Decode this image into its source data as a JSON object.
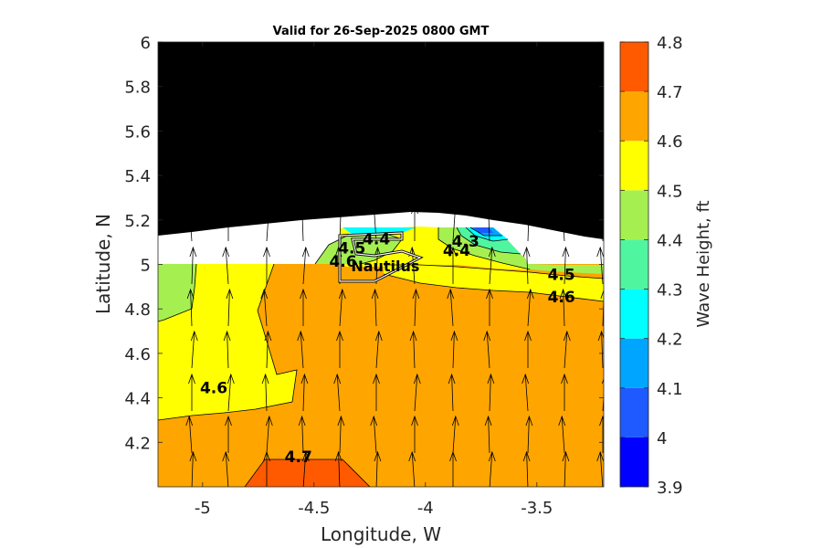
{
  "chart_data": {
    "type": "heatmap",
    "title": "Valid for 26-Sep-2025 0800 GMT",
    "xlabel": "Longitude, W",
    "ylabel": "Latitude, N",
    "xlim": [
      -5.2,
      -3.2
    ],
    "ylim": [
      4.0,
      6.0
    ],
    "x_ticks": [
      -5,
      -4.5,
      -4,
      -3.5
    ],
    "x_tick_labels": [
      "-5",
      "-4.5",
      "-4",
      "-3.5"
    ],
    "y_ticks": [
      4.2,
      4.4,
      4.6,
      4.8,
      5.0,
      5.2,
      5.4,
      5.6,
      5.8,
      6.0
    ],
    "y_tick_labels": [
      "4.2",
      "4.4",
      "4.6",
      "4.8",
      "5",
      "5.2",
      "5.4",
      "5.6",
      "5.8",
      "6"
    ],
    "colorbar": {
      "label": "Wave Height, ft",
      "levels": [
        3.9,
        4.0,
        4.1,
        4.2,
        4.3,
        4.4,
        4.5,
        4.6,
        4.7,
        4.8
      ],
      "tick_labels": [
        "3.9",
        "4",
        "4.1",
        "4.2",
        "4.3",
        "4.4",
        "4.5",
        "4.6",
        "4.7",
        "4.8"
      ],
      "colors": [
        "#0000ff",
        "#1e5aff",
        "#00a5ff",
        "#00ffff",
        "#50f5a0",
        "#a5f050",
        "#ffff00",
        "#ffa500",
        "#ff5a00"
      ]
    },
    "contour_labels": [
      {
        "text": "4.6",
        "lon": -4.95,
        "lat": 4.42
      },
      {
        "text": "4.7",
        "lon": -4.57,
        "lat": 4.11
      },
      {
        "text": "4.5",
        "lon": -3.39,
        "lat": 4.93
      },
      {
        "text": "4.6",
        "lon": -3.39,
        "lat": 4.83
      },
      {
        "text": "4.4",
        "lon": -3.86,
        "lat": 5.04
      },
      {
        "text": "4.3",
        "lon": -3.82,
        "lat": 5.08
      },
      {
        "text": "4.5",
        "lon": -4.33,
        "lat": 5.05
      },
      {
        "text": "4.4",
        "lon": -4.22,
        "lat": 5.09
      },
      {
        "text": "4.6",
        "lon": -4.37,
        "lat": 4.99
      }
    ],
    "annotations": [
      {
        "text": "Nautilus",
        "lon": -4.18,
        "lat": 4.97
      }
    ],
    "land_color": "#000000",
    "no_data_color": "#ffffff",
    "vectors": "wave direction arrows, predominantly pointing north"
  }
}
